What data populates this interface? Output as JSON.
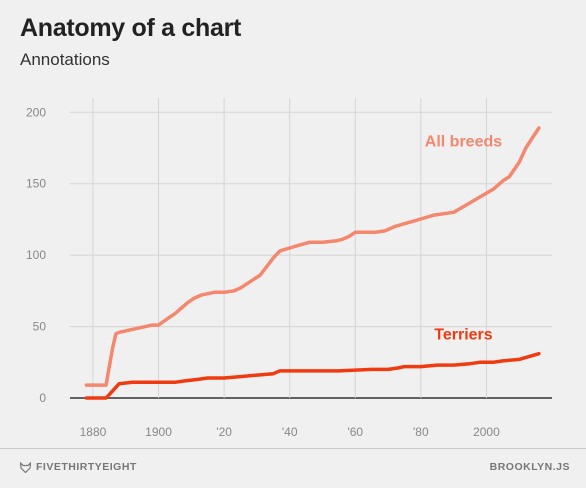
{
  "header": {
    "title": "Anatomy of a chart",
    "subtitle": "Annotations"
  },
  "footer": {
    "brand": "FIVETHIRTYEIGHT",
    "credit": "BROOKLYN.JS",
    "brand_icon": "fivethirtyeight-fox-icon"
  },
  "chart_data": {
    "type": "line",
    "title": "Anatomy of a chart",
    "subtitle": "Annotations",
    "xlabel": "",
    "ylabel": "",
    "xlim": [
      1873,
      2020
    ],
    "ylim": [
      0,
      210
    ],
    "grid": true,
    "x_ticks": [
      1880,
      1900,
      1920,
      1940,
      1960,
      1980,
      2000
    ],
    "x_tick_labels": [
      "1880",
      "1900",
      "'20",
      "'40",
      "'60",
      "'80",
      "2000"
    ],
    "y_ticks": [
      0,
      50,
      100,
      150,
      200
    ],
    "y_tick_labels": [
      "0",
      "50",
      "100",
      "150",
      "200"
    ],
    "series": [
      {
        "name": "All breeds",
        "color": "#f4876e",
        "x": [
          1878,
          1884,
          1885,
          1886,
          1887,
          1888,
          1890,
          1892,
          1894,
          1896,
          1898,
          1900,
          1903,
          1905,
          1907,
          1909,
          1911,
          1913,
          1915,
          1917,
          1920,
          1923,
          1925,
          1927,
          1929,
          1931,
          1933,
          1935,
          1937,
          1940,
          1943,
          1946,
          1950,
          1954,
          1956,
          1958,
          1960,
          1963,
          1966,
          1969,
          1972,
          1975,
          1978,
          1981,
          1984,
          1987,
          1990,
          1993,
          1996,
          1999,
          2002,
          2005,
          2007,
          2010,
          2012,
          2014,
          2016
        ],
        "y": [
          9,
          9,
          22,
          35,
          45,
          46,
          47,
          48,
          49,
          50,
          51,
          51,
          56,
          59,
          63,
          67,
          70,
          72,
          73,
          74,
          74,
          75,
          77,
          80,
          83,
          86,
          92,
          98,
          103,
          105,
          107,
          109,
          109,
          110,
          111,
          113,
          116,
          116,
          116,
          117,
          120,
          122,
          124,
          126,
          128,
          129,
          130,
          134,
          138,
          142,
          146,
          152,
          155,
          165,
          175,
          182,
          189
        ]
      },
      {
        "name": "Terriers",
        "color": "#f03b10",
        "x": [
          1878,
          1884,
          1886,
          1888,
          1892,
          1896,
          1900,
          1905,
          1908,
          1912,
          1915,
          1920,
          1925,
          1930,
          1935,
          1937,
          1945,
          1955,
          1965,
          1970,
          1973,
          1975,
          1980,
          1985,
          1990,
          1995,
          1998,
          2002,
          2005,
          2010,
          2013,
          2016
        ],
        "y": [
          0,
          0,
          5,
          10,
          11,
          11,
          11,
          11,
          12,
          13,
          14,
          14,
          15,
          16,
          17,
          19,
          19,
          19,
          20,
          20,
          21,
          22,
          22,
          23,
          23,
          24,
          25,
          25,
          26,
          27,
          29,
          31
        ]
      }
    ],
    "annotations": [
      {
        "text": "All breeds",
        "x": 1993,
        "y": 176,
        "color": "#f4876e"
      },
      {
        "text": "Terriers",
        "x": 1993,
        "y": 41,
        "color": "#f03b10"
      }
    ]
  }
}
